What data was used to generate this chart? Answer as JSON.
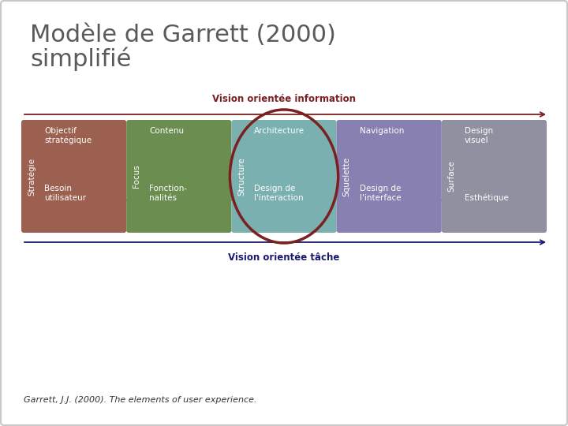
{
  "title_line1": "Modèle de Garrett (2000)",
  "title_line2": "simplifié",
  "background_color": "#ffffff",
  "border_color": "#c8c8c8",
  "title_color": "#5a5a5a",
  "title_fontsize": 22,
  "vision_info_label": "Vision orientée information",
  "vision_tache_label": "Vision orientée tâche",
  "vision_color_info": "#7b2020",
  "vision_color_tache": "#1a1a6e",
  "footer": "Garrett, J.J. (2000). The elements of user experience.",
  "columns": [
    {
      "top_label": "Objectif\nstratégique",
      "side_label": "Stratégie",
      "bottom_label": "Besoin\nutilisateur",
      "color": "#9b6050",
      "text_color": "#ffffff",
      "has_arrow_right": true,
      "has_ellipse": false
    },
    {
      "top_label": "Contenu",
      "side_label": "Focus",
      "bottom_label": "Fonction-\nnalités",
      "color": "#6b8e50",
      "text_color": "#ffffff",
      "has_arrow_right": true,
      "has_ellipse": false
    },
    {
      "top_label": "Architecture",
      "side_label": "Structure",
      "bottom_label": "Design de\nl'interaction",
      "color": "#7ab0b0",
      "text_color": "#ffffff",
      "has_arrow_right": true,
      "has_ellipse": true
    },
    {
      "top_label": "Navigation",
      "side_label": "Squelette",
      "bottom_label": "Design de\nl'interface",
      "color": "#8880b0",
      "text_color": "#ffffff",
      "has_arrow_right": true,
      "has_ellipse": false
    },
    {
      "top_label": "Design\nvisuel",
      "side_label": "Surface",
      "bottom_label": "Esthétique",
      "color": "#9090a0",
      "text_color": "#ffffff",
      "has_arrow_right": false,
      "has_ellipse": false
    }
  ]
}
